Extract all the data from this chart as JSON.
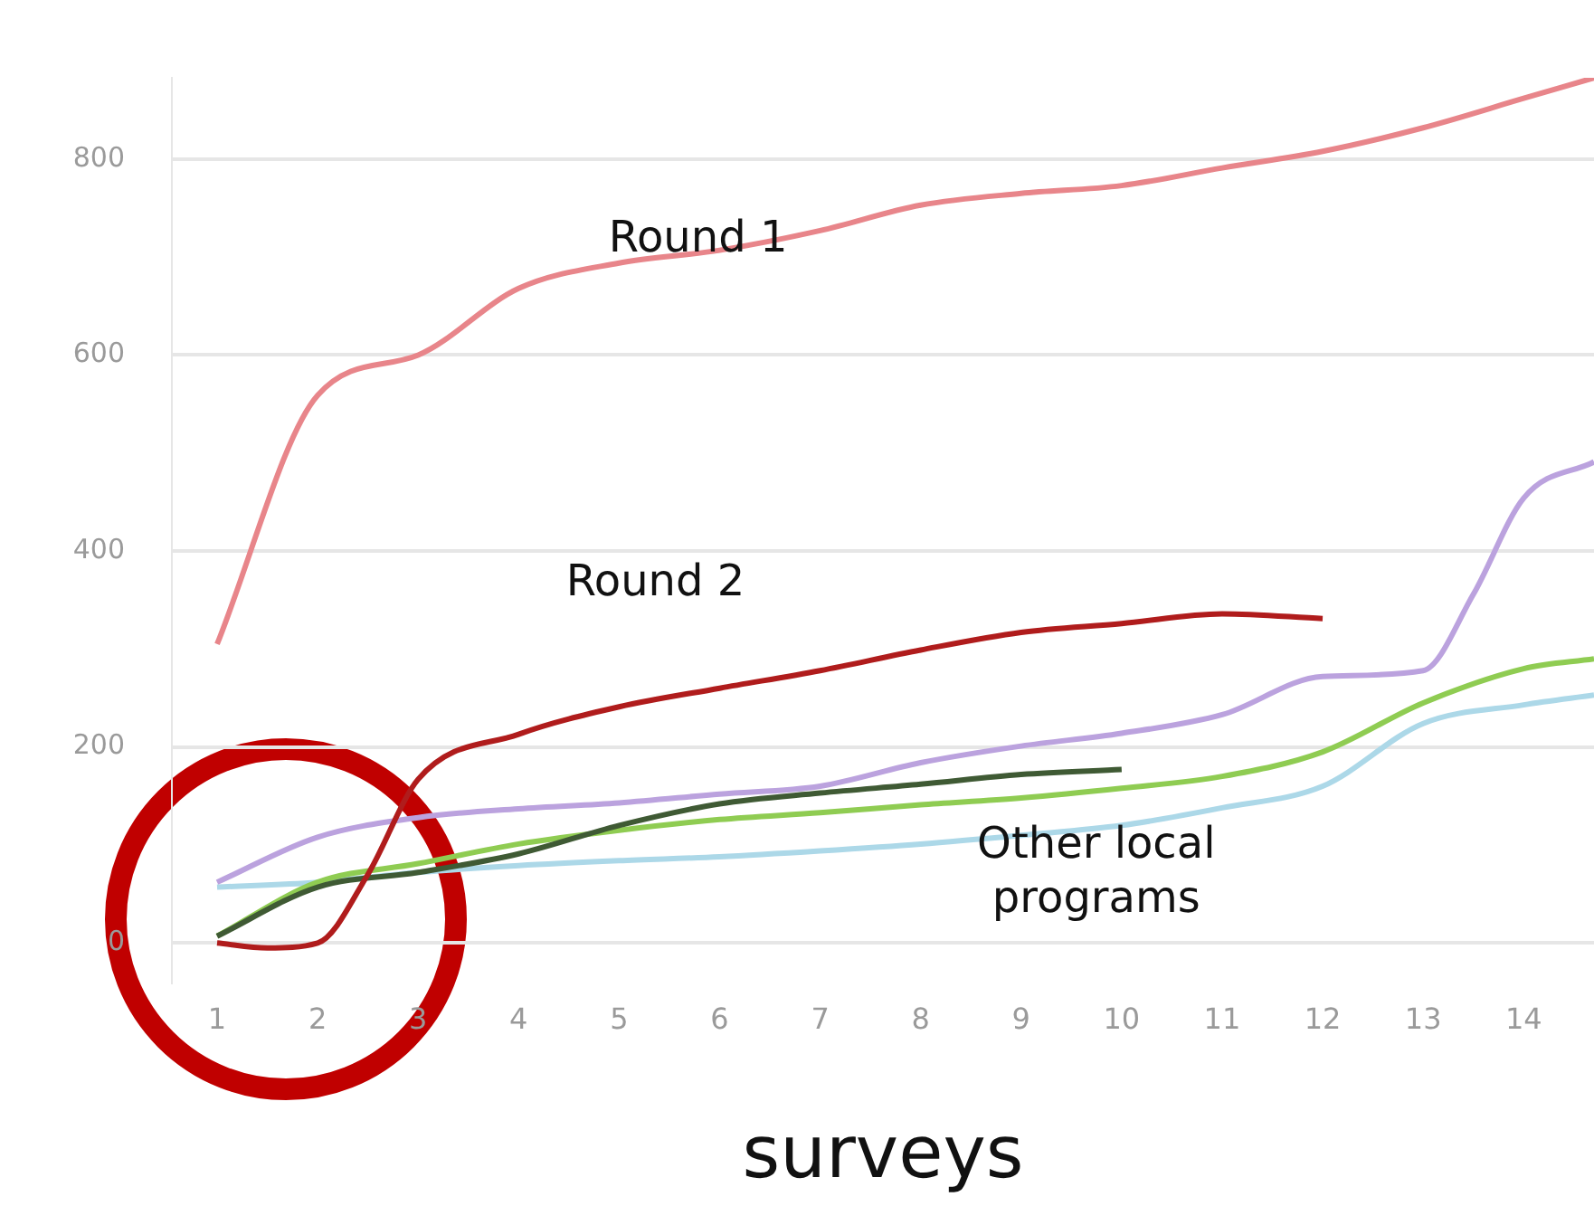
{
  "chart_data": {
    "type": "line",
    "xlabel": "surveys",
    "xlim": [
      0.55,
      14.7
    ],
    "xticks": [
      1,
      2,
      3,
      4,
      5,
      6,
      7,
      8,
      9,
      10,
      11,
      12,
      13,
      14
    ],
    "ylim": [
      -40,
      883
    ],
    "yticks": [
      0,
      200,
      400,
      600,
      800
    ],
    "grid": "y",
    "legend": false,
    "marker": "none",
    "line_style": "solid",
    "series": [
      {
        "color": "#e8858a",
        "x": [
          1,
          2,
          3,
          4,
          5,
          6,
          7,
          8,
          9,
          10,
          11,
          12,
          13,
          14,
          14.7
        ],
        "values": [
          305,
          559,
          600,
          668,
          694,
          707,
          727,
          753,
          765,
          773,
          791,
          808,
          832,
          862,
          883
        ]
      },
      {
        "color": "#b01c1c",
        "x": [
          1,
          1.5,
          2,
          2.5,
          3,
          4,
          5,
          6,
          7,
          8,
          9,
          10,
          11,
          12
        ],
        "values": [
          0,
          -5,
          0,
          70,
          167,
          213,
          241,
          260,
          278,
          299,
          317,
          326,
          336,
          331
        ]
      },
      {
        "color": "#bba2de",
        "x": [
          1,
          2,
          3,
          4,
          5,
          6,
          7,
          8,
          9,
          10,
          11,
          12,
          13,
          13.5,
          14,
          14.7
        ],
        "values": [
          62,
          108,
          128,
          137,
          143,
          152,
          160,
          184,
          201,
          214,
          233,
          272,
          278,
          356,
          454,
          491
        ]
      },
      {
        "color": "#3f5a34",
        "x": [
          1,
          2,
          3,
          4,
          5,
          6,
          7,
          8,
          9,
          10
        ],
        "values": [
          7,
          57,
          72,
          91,
          120,
          142,
          153,
          162,
          172,
          177
        ]
      },
      {
        "color": "#8fcc52",
        "x": [
          1,
          2,
          3,
          4,
          5,
          6,
          7,
          8,
          9,
          10,
          11,
          12,
          13,
          14,
          14.7
        ],
        "values": [
          7,
          62,
          81,
          101,
          115,
          126,
          133,
          141,
          148,
          158,
          170,
          195,
          245,
          280,
          290
        ]
      },
      {
        "color": "#acd8e8",
        "x": [
          1,
          2,
          3,
          4,
          5,
          6,
          7,
          8,
          9,
          10,
          11,
          12,
          13,
          14,
          14.7
        ],
        "values": [
          57,
          62,
          72,
          79,
          84,
          88,
          94,
          101,
          110,
          120,
          138,
          160,
          224,
          243,
          253
        ]
      }
    ],
    "annotations": [
      "Round 1",
      "Round 2",
      "Other local\nprograms"
    ]
  }
}
